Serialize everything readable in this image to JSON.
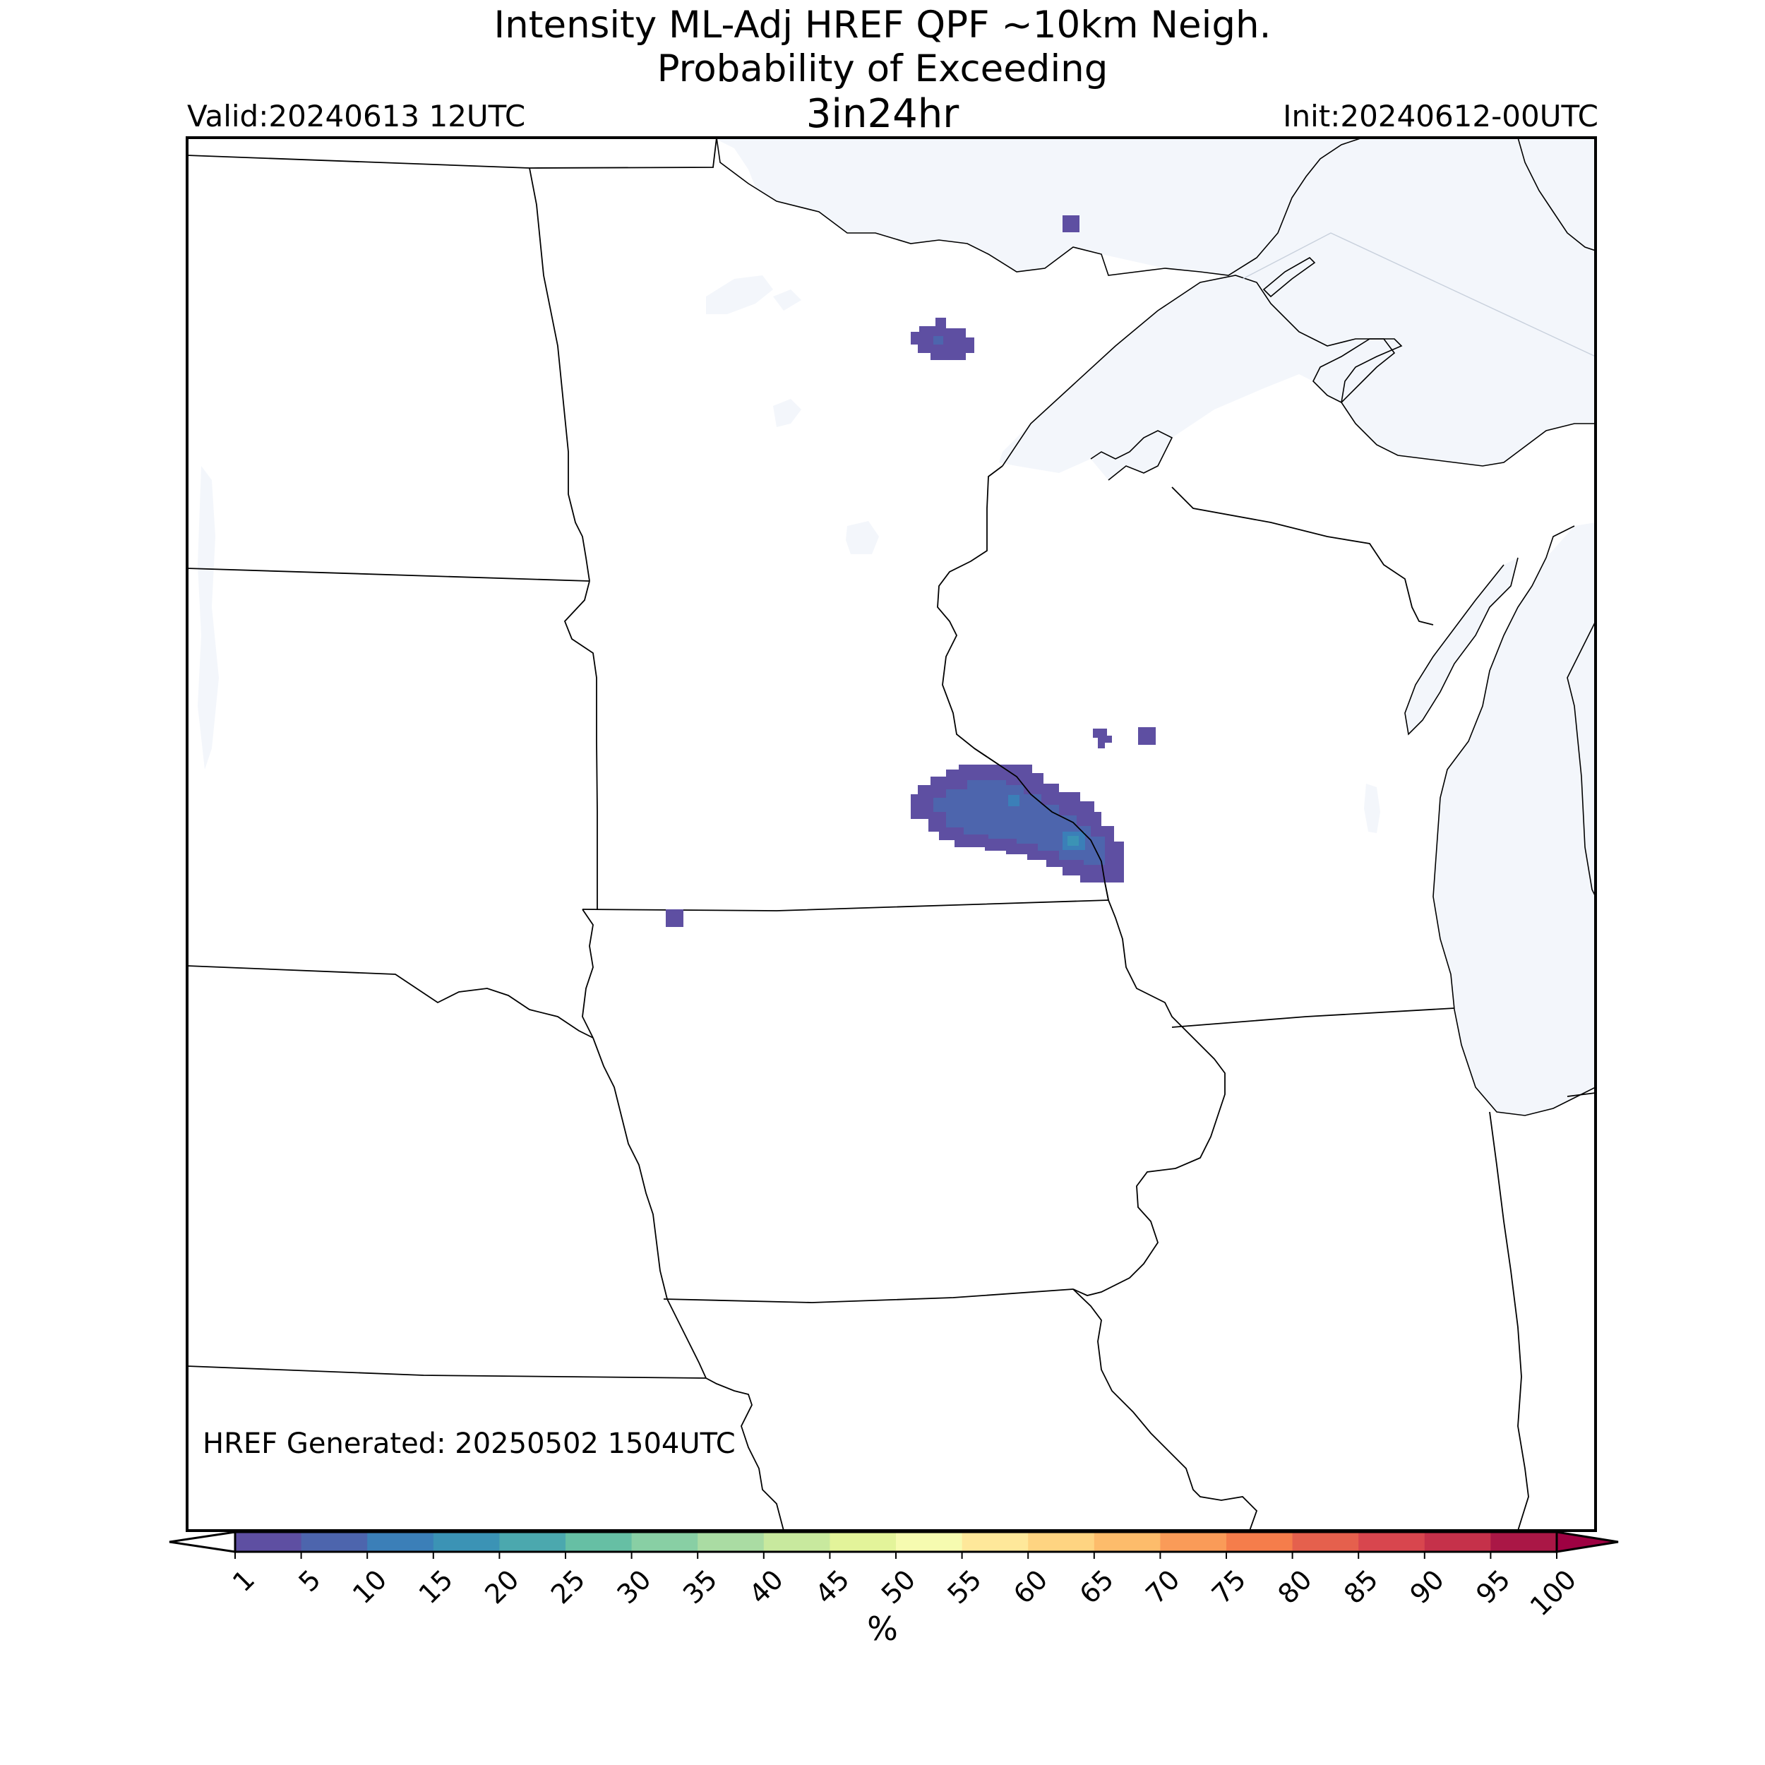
{
  "title": {
    "line1": "Intensity ML-Adj HREF QPF ~10km Neigh.",
    "line2": "Probability of Exceeding",
    "line3": "3in24hr"
  },
  "valid_label": "Valid:20240613 12UTC",
  "init_label": "Init:20240612-00UTC",
  "generated_label": "HREF Generated: 20250502 1504UTC",
  "colorbar": {
    "unit_label": "%",
    "ticks": [
      "1",
      "5",
      "10",
      "15",
      "20",
      "25",
      "30",
      "35",
      "40",
      "45",
      "50",
      "55",
      "60",
      "65",
      "70",
      "75",
      "80",
      "85",
      "90",
      "95",
      "100"
    ],
    "colors": [
      "#5e4fa2",
      "#4d65ad",
      "#3b7fb8",
      "#3b93b5",
      "#4ba8ae",
      "#66bfa4",
      "#88cfa4",
      "#aadca3",
      "#c8e99e",
      "#e3f49a",
      "#f6fbb0",
      "#fee89a",
      "#fed481",
      "#fdbc6b",
      "#fa9b58",
      "#f57d4b",
      "#e5604d",
      "#d8464e",
      "#c5314a",
      "#aa1746",
      "#9e0142"
    ],
    "under_color": "#ffffff",
    "over_color": "#9e0142"
  },
  "map": {
    "land_color": "#ffffff",
    "water_color": "#f3f6fb",
    "border_color": "#000000",
    "probability_areas": [
      {
        "name": "minnesota-north-blob",
        "probability_range": "1-5"
      },
      {
        "name": "minnesota-wisconsin-main-blob",
        "probability_range": "1-15"
      },
      {
        "name": "iowa-north-pixel",
        "probability_range": "1-5"
      },
      {
        "name": "wisconsin-pixels",
        "probability_range": "1-5"
      },
      {
        "name": "lake-superior-north-pixel",
        "probability_range": "1-5"
      }
    ]
  }
}
